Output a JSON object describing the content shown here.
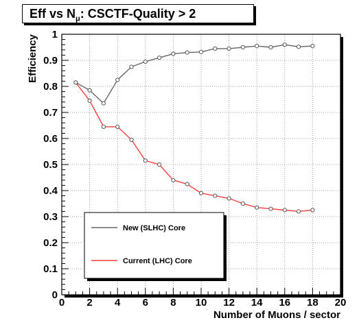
{
  "title": {
    "prefix": "Eff vs N",
    "subscript": "μ",
    "suffix": ": CSCTF-Quality > 2"
  },
  "chart_data": {
    "type": "line",
    "title": "Eff vs Nμ: CSCTF-Quality > 2",
    "xlabel": "Number of Muons / sector",
    "ylabel": "Efficiency",
    "xlim": [
      0,
      20
    ],
    "ylim": [
      0,
      1
    ],
    "xticks": [
      0,
      2,
      4,
      6,
      8,
      10,
      12,
      14,
      16,
      18,
      20
    ],
    "yticks": [
      0,
      0.1,
      0.2,
      0.3,
      0.4,
      0.5,
      0.6,
      0.7,
      0.8,
      0.9,
      1
    ],
    "grid": true,
    "legend_position": "bottom-left",
    "series": [
      {
        "name": "New (SLHC) Core",
        "color": "#666666",
        "x": [
          1,
          2,
          3,
          4,
          5,
          6,
          7,
          8,
          9,
          10,
          11,
          12,
          13,
          14,
          15,
          16,
          17,
          18
        ],
        "y": [
          0.815,
          0.785,
          0.735,
          0.825,
          0.875,
          0.895,
          0.91,
          0.925,
          0.93,
          0.932,
          0.945,
          0.945,
          0.95,
          0.955,
          0.95,
          0.96,
          0.952,
          0.955
        ]
      },
      {
        "name": "Current (LHC) Core",
        "color": "#ff3b3b",
        "x": [
          1,
          2,
          3,
          4,
          5,
          6,
          7,
          8,
          9,
          10,
          11,
          12,
          13,
          14,
          15,
          16,
          17,
          18
        ],
        "y": [
          0.815,
          0.745,
          0.645,
          0.645,
          0.595,
          0.515,
          0.5,
          0.44,
          0.425,
          0.39,
          0.38,
          0.37,
          0.35,
          0.335,
          0.33,
          0.325,
          0.32,
          0.325
        ]
      }
    ]
  }
}
